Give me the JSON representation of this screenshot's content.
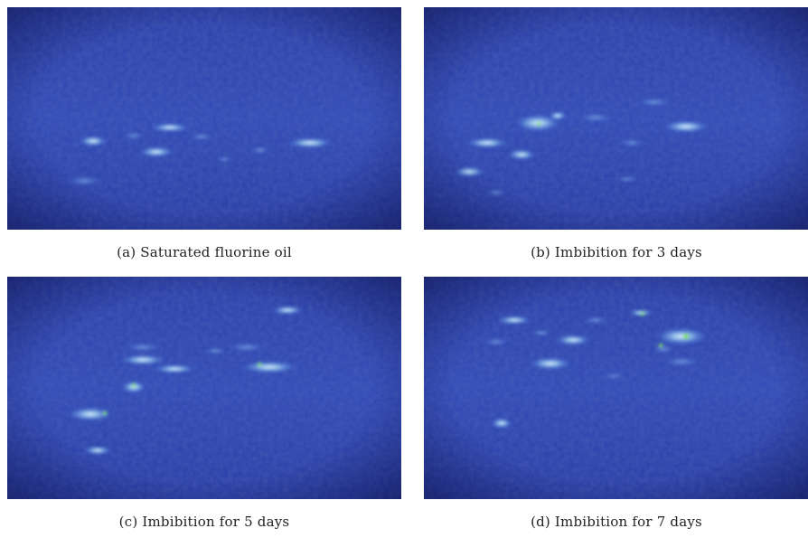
{
  "figure": {
    "panels": [
      {
        "caption": "(a) Saturated fluorine oil"
      },
      {
        "caption": "(b) Imbibition for 3 days"
      },
      {
        "caption": "(c) Imbibition for 5 days"
      },
      {
        "caption": "(d) Imbibition for 7 days"
      }
    ]
  },
  "colors": {
    "background_dark": "#1b2a84",
    "background_mid": "#2d45b4",
    "signal_low": "#4a74d4",
    "signal_mid": "#8fc2ee",
    "signal_high": "#dff3ff",
    "signal_peak": "#7fe05a"
  }
}
